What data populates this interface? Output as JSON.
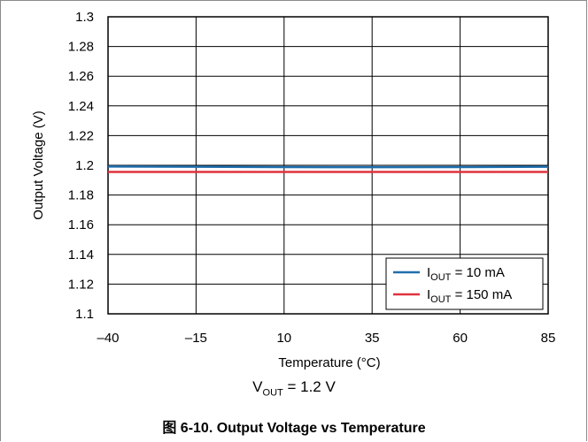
{
  "chart_data": {
    "type": "line",
    "xlabel": "Temperature (°C)",
    "ylabel": "Output Voltage (V)",
    "xlim": [
      -40,
      85
    ],
    "ylim": [
      1.1,
      1.3
    ],
    "x_ticks": [
      "–40",
      "–15",
      "10",
      "35",
      "60",
      "85"
    ],
    "x_tick_values": [
      -40,
      -15,
      10,
      35,
      60,
      85
    ],
    "y_ticks": [
      "1.3",
      "1.28",
      "1.26",
      "1.24",
      "1.22",
      "1.2",
      "1.18",
      "1.16",
      "1.14",
      "1.12",
      "1.1"
    ],
    "y_tick_values": [
      1.3,
      1.28,
      1.26,
      1.24,
      1.22,
      1.2,
      1.18,
      1.16,
      1.14,
      1.12,
      1.1
    ],
    "grid": true,
    "legend_position": "bottom-right",
    "series": [
      {
        "name_main": "I",
        "name_sub": "OUT",
        "name_rest": " = 10 mA",
        "color": "#1f6fae",
        "x": [
          -40,
          -15,
          10,
          35,
          60,
          85
        ],
        "y": [
          1.1992,
          1.199,
          1.1988,
          1.1987,
          1.1988,
          1.199
        ]
      },
      {
        "name_main": "I",
        "name_sub": "OUT",
        "name_rest": " = 150 mA",
        "color": "#e0323c",
        "x": [
          -40,
          -15,
          10,
          35,
          60,
          85
        ],
        "y": [
          1.1955,
          1.1955,
          1.1955,
          1.1955,
          1.1955,
          1.1955
        ]
      }
    ]
  },
  "condition": {
    "main": "V",
    "sub": "OUT",
    "rest": " = 1.2 V"
  },
  "caption": "图 6-10. Output Voltage vs Temperature"
}
